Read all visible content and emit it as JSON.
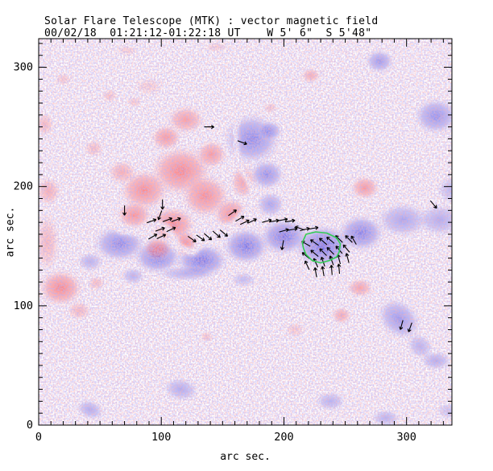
{
  "chart_data": {
    "type": "heatmap",
    "title": "Solar Flare Telescope (MTK) : vector magnetic field",
    "subtitle": "00/02/18  01:21:12-01:22:18 UT    W 5' 6\"  S 5'48\"",
    "xlabel": "arc sec.",
    "ylabel": "arc sec.",
    "xlim": [
      0,
      337
    ],
    "ylim": [
      0,
      324
    ],
    "x_major_ticks": [
      0,
      100,
      200,
      300
    ],
    "y_major_ticks": [
      0,
      100,
      200,
      300
    ],
    "minor_tick_step": 10,
    "grid": false,
    "legend": "none",
    "colors": {
      "positive_red": "#ff7070",
      "negative_blue": "#5a5ae6",
      "contour_green": "#33cc55",
      "vector_black": "#000000",
      "background": "#ffffff"
    },
    "red_regions": [
      [
        120,
        256,
        17,
        13,
        0.75
      ],
      [
        104,
        241,
        14,
        12,
        0.8
      ],
      [
        116,
        213,
        28,
        23,
        0.95
      ],
      [
        86,
        197,
        22,
        19,
        0.9
      ],
      [
        136,
        192,
        22,
        20,
        0.9
      ],
      [
        109,
        168,
        21,
        17,
        0.95
      ],
      [
        78,
        176,
        16,
        13,
        0.85
      ],
      [
        157,
        177,
        16,
        15,
        0.85
      ],
      [
        97,
        148,
        13,
        11,
        0.85
      ],
      [
        120,
        152,
        11,
        12,
        0.9
      ],
      [
        167,
        204,
        12,
        16,
        0.7
      ],
      [
        141,
        227,
        14,
        13,
        0.8
      ],
      [
        68,
        212,
        13,
        11,
        0.6
      ],
      [
        45,
        232,
        9,
        8,
        0.45
      ],
      [
        8,
        196,
        11,
        13,
        0.6
      ],
      [
        5,
        252,
        8,
        11,
        0.5
      ],
      [
        58,
        276,
        7,
        6,
        0.4
      ],
      [
        78,
        271,
        7,
        5,
        0.35
      ],
      [
        222,
        293,
        9,
        7,
        0.6
      ],
      [
        189,
        266,
        6,
        5,
        0.4
      ],
      [
        266,
        199,
        13,
        11,
        0.8
      ],
      [
        18,
        115,
        20,
        17,
        0.95
      ],
      [
        33,
        96,
        11,
        9,
        0.5
      ],
      [
        47,
        119,
        8,
        7,
        0.45
      ],
      [
        262,
        115,
        12,
        9,
        0.7
      ],
      [
        247,
        92,
        9,
        8,
        0.65
      ],
      [
        209,
        80,
        9,
        7,
        0.35
      ],
      [
        137,
        74,
        6,
        5,
        0.4
      ],
      [
        90,
        284,
        13,
        8,
        0.3
      ],
      [
        20,
        290,
        8,
        6,
        0.35
      ],
      [
        72,
        314,
        9,
        5,
        0.3
      ],
      [
        145,
        317,
        11,
        5,
        0.3
      ],
      [
        7,
        153,
        11,
        27,
        0.5
      ]
    ],
    "blue_regions": [
      [
        278,
        305,
        13,
        11,
        0.7
      ],
      [
        324,
        259,
        20,
        17,
        0.75
      ],
      [
        174,
        240,
        26,
        24,
        0.8
      ],
      [
        186,
        210,
        16,
        14,
        0.75
      ],
      [
        189,
        247,
        11,
        9,
        0.6
      ],
      [
        66,
        152,
        24,
        17,
        0.8
      ],
      [
        97,
        141,
        22,
        16,
        0.85
      ],
      [
        133,
        138,
        24,
        16,
        0.9
      ],
      [
        169,
        150,
        21,
        17,
        0.9
      ],
      [
        200,
        158,
        22,
        17,
        0.9
      ],
      [
        232,
        150,
        26,
        20,
        0.95
      ],
      [
        263,
        161,
        21,
        17,
        0.85
      ],
      [
        297,
        172,
        24,
        16,
        0.6
      ],
      [
        327,
        172,
        20,
        15,
        0.55
      ],
      [
        337,
        197,
        14,
        13,
        0.45
      ],
      [
        189,
        185,
        13,
        12,
        0.6
      ],
      [
        42,
        137,
        12,
        9,
        0.5
      ],
      [
        77,
        125,
        11,
        8,
        0.5
      ],
      [
        120,
        127,
        26,
        7,
        0.5
      ],
      [
        42,
        13,
        13,
        9,
        0.55,
        20
      ],
      [
        116,
        30,
        16,
        11,
        0.55,
        10
      ],
      [
        294,
        89,
        22,
        17,
        0.7,
        40
      ],
      [
        311,
        66,
        13,
        11,
        0.5,
        40
      ],
      [
        324,
        54,
        14,
        9,
        0.55
      ],
      [
        238,
        20,
        14,
        9,
        0.5
      ],
      [
        283,
        6,
        13,
        8,
        0.5
      ],
      [
        167,
        122,
        12,
        7,
        0.4
      ],
      [
        334,
        12,
        11,
        8,
        0.35
      ]
    ],
    "neutral_line": [
      [
        [
          42,
          179
        ],
        [
          67,
          163
        ],
        [
          82,
          161
        ],
        [
          97,
          169
        ],
        [
          105,
          165
        ],
        [
          114,
          149
        ],
        [
          126,
          145
        ],
        [
          134,
          153
        ],
        [
          146,
          164
        ],
        [
          159,
          168
        ],
        [
          170,
          181
        ],
        [
          175,
          196
        ]
      ],
      [
        [
          164,
          272
        ],
        [
          160,
          248
        ],
        [
          162,
          221
        ],
        [
          174,
          199
        ]
      ]
    ],
    "contour_green_points": [
      [
        215,
        153
      ],
      [
        218,
        160
      ],
      [
        226,
        162
      ],
      [
        235,
        161
      ],
      [
        243,
        157
      ],
      [
        246,
        152
      ],
      [
        245,
        145
      ],
      [
        243,
        141
      ],
      [
        237,
        138
      ],
      [
        230,
        136
      ],
      [
        223,
        138
      ],
      [
        218,
        143
      ],
      [
        216,
        148
      ]
    ],
    "vector_length_arcsec": 8,
    "vectors": [
      [
        70,
        180,
        270
      ],
      [
        101,
        185,
        270
      ],
      [
        99,
        176,
        250
      ],
      [
        92,
        171,
        20
      ],
      [
        105,
        172,
        20
      ],
      [
        112,
        172,
        20
      ],
      [
        99,
        164,
        20
      ],
      [
        108,
        164,
        25
      ],
      [
        93,
        158,
        30
      ],
      [
        100,
        158,
        25
      ],
      [
        125,
        156,
        325
      ],
      [
        132,
        157,
        325
      ],
      [
        138,
        158,
        320
      ],
      [
        145,
        160,
        320
      ],
      [
        151,
        161,
        320
      ],
      [
        158,
        178,
        35
      ],
      [
        164,
        173,
        30
      ],
      [
        168,
        170,
        25
      ],
      [
        174,
        171,
        25
      ],
      [
        186,
        171,
        15
      ],
      [
        192,
        171,
        10
      ],
      [
        199,
        172,
        10
      ],
      [
        205,
        171,
        10
      ],
      [
        200,
        163,
        15
      ],
      [
        207,
        164,
        10
      ],
      [
        217,
        164,
        15
      ],
      [
        224,
        165,
        10
      ],
      [
        199,
        151,
        260
      ],
      [
        139,
        250,
        0
      ],
      [
        166,
        237,
        340
      ],
      [
        322,
        185,
        310
      ],
      [
        213,
        165,
        160
      ],
      [
        218,
        152,
        150
      ],
      [
        225,
        153,
        145
      ],
      [
        232,
        154,
        140
      ],
      [
        238,
        155,
        140
      ],
      [
        245,
        156,
        135
      ],
      [
        253,
        156,
        135
      ],
      [
        218,
        142,
        140
      ],
      [
        225,
        144,
        140
      ],
      [
        232,
        145,
        135
      ],
      [
        238,
        146,
        135
      ],
      [
        245,
        147,
        130
      ],
      [
        251,
        148,
        130
      ],
      [
        257,
        155,
        120
      ],
      [
        219,
        134,
        115
      ],
      [
        226,
        136,
        115
      ],
      [
        232,
        137,
        110
      ],
      [
        239,
        138,
        110
      ],
      [
        245,
        139,
        105
      ],
      [
        252,
        140,
        105
      ],
      [
        226,
        128,
        100
      ],
      [
        232,
        129,
        100
      ],
      [
        239,
        130,
        95
      ],
      [
        245,
        131,
        95
      ],
      [
        296,
        84,
        255
      ],
      [
        303,
        82,
        250
      ]
    ]
  }
}
